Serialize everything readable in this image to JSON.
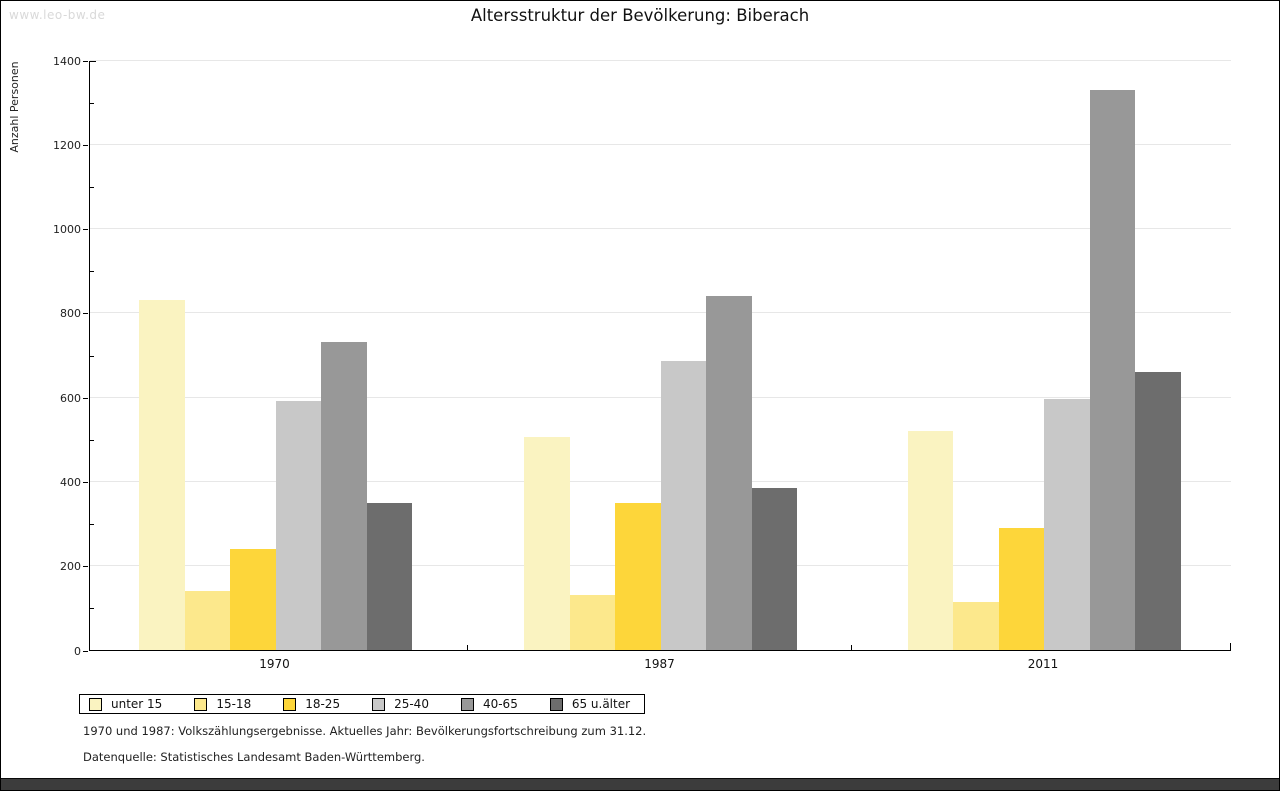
{
  "watermark": "www.leo-bw.de",
  "title": "Altersstruktur der Bevölkerung: Biberach",
  "footnotes": {
    "line1": "1970 und 1987: Volkszählungsergebnisse. Aktuelles Jahr: Bevölkerungsfortschreibung zum 31.12.",
    "line2": "Datenquelle: Statistisches Landesamt Baden-Württemberg."
  },
  "chart_data": {
    "type": "bar",
    "title": "Altersstruktur der Bevölkerung: Biberach",
    "ylabel": "Anzahl Personen",
    "xlabel": "",
    "categories": [
      "1970",
      "1987",
      "2011"
    ],
    "series": [
      {
        "name": "unter 15",
        "color": "#faf3c1",
        "values": [
          830,
          505,
          520
        ]
      },
      {
        "name": "15-18",
        "color": "#fce88c",
        "values": [
          140,
          130,
          115
        ]
      },
      {
        "name": "18-25",
        "color": "#fdd63a",
        "values": [
          240,
          350,
          290
        ]
      },
      {
        "name": "25-40",
        "color": "#c8c8c8",
        "values": [
          590,
          685,
          595
        ]
      },
      {
        "name": "40-65",
        "color": "#989898",
        "values": [
          730,
          840,
          1330
        ]
      },
      {
        "name": "65 u.älter",
        "color": "#6d6d6d",
        "values": [
          350,
          385,
          660
        ]
      }
    ],
    "ylim": [
      0,
      1400
    ],
    "ytick_major_step": 200,
    "ytick_minor_step": 100,
    "grid": true,
    "legend_position": "bottom"
  },
  "colors": {
    "grid": "#e7e7e7",
    "axis": "#000000",
    "watermark": "#d9d9d9",
    "bottom_bar": "#3c3c3c"
  }
}
